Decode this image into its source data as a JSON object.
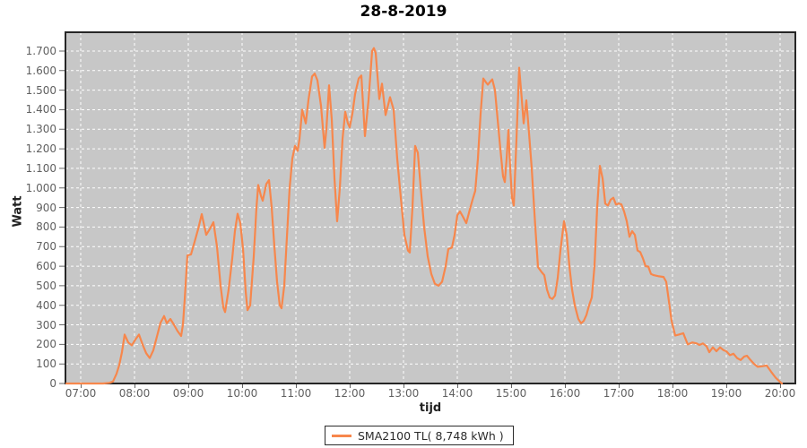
{
  "title": "28-8-2019",
  "y_axis": {
    "label": "Watt"
  },
  "x_axis": {
    "label": "tijd"
  },
  "legend": {
    "series_label": "SMA2100 TL( 8,748 kWh )"
  },
  "colors": {
    "series_line": "#f7874c",
    "plot_background": "#c7c7c7",
    "gridline": "#ffffff",
    "plot_border": "#262626",
    "tick_label": "#606060",
    "tick_mark": "#666666"
  },
  "chart_data": {
    "type": "line",
    "title": "28-8-2019",
    "xlabel": "tijd",
    "ylabel": "Watt",
    "ylim": [
      0,
      1796
    ],
    "xlim": [
      "06:43",
      "20:15"
    ],
    "grid": "white dashed gridlines on gray plot, every hour / every 100 W",
    "legend_position": "bottom-center",
    "x_ticks": [
      "07:00",
      "08:00",
      "09:00",
      "10:00",
      "11:00",
      "12:00",
      "13:00",
      "14:00",
      "15:00",
      "16:00",
      "17:00",
      "18:00",
      "19:00",
      "20:00"
    ],
    "y_tick_values": [
      0,
      100,
      200,
      300,
      400,
      500,
      600,
      700,
      800,
      900,
      1000,
      1100,
      1200,
      1300,
      1400,
      1500,
      1600,
      1700
    ],
    "y_tick_labels": [
      "0",
      "100",
      "200",
      "300",
      "400",
      "500",
      "600",
      "700",
      "800",
      "900",
      "1.000",
      "1.100",
      "1.200",
      "1.300",
      "1.400",
      "1.500",
      "1.600",
      "1.700"
    ],
    "series": [
      {
        "name": "SMA2100 TL( 8,748 kWh )",
        "color": "#f7874c",
        "points": [
          [
            "06:44",
            0
          ],
          [
            "07:00",
            0
          ],
          [
            "07:15",
            0
          ],
          [
            "07:25",
            0
          ],
          [
            "07:32",
            3
          ],
          [
            "07:36",
            10
          ],
          [
            "07:40",
            50
          ],
          [
            "07:43",
            95
          ],
          [
            "07:46",
            160
          ],
          [
            "07:49",
            250
          ],
          [
            "07:53",
            210
          ],
          [
            "07:57",
            195
          ],
          [
            "08:01",
            225
          ],
          [
            "08:05",
            250
          ],
          [
            "08:09",
            200
          ],
          [
            "08:13",
            155
          ],
          [
            "08:17",
            130
          ],
          [
            "08:21",
            170
          ],
          [
            "08:25",
            240
          ],
          [
            "08:29",
            310
          ],
          [
            "08:33",
            345
          ],
          [
            "08:36",
            308
          ],
          [
            "08:40",
            330
          ],
          [
            "08:44",
            300
          ],
          [
            "08:48",
            268
          ],
          [
            "08:52",
            243
          ],
          [
            "08:54",
            300
          ],
          [
            "08:56",
            430
          ],
          [
            "08:59",
            655
          ],
          [
            "09:03",
            660
          ],
          [
            "09:07",
            724
          ],
          [
            "09:11",
            790
          ],
          [
            "09:15",
            866
          ],
          [
            "09:20",
            760
          ],
          [
            "09:24",
            790
          ],
          [
            "09:28",
            825
          ],
          [
            "09:32",
            700
          ],
          [
            "09:36",
            500
          ],
          [
            "09:39",
            390
          ],
          [
            "09:41",
            365
          ],
          [
            "09:45",
            480
          ],
          [
            "09:49",
            640
          ],
          [
            "09:52",
            780
          ],
          [
            "09:55",
            868
          ],
          [
            "09:58",
            820
          ],
          [
            "10:01",
            690
          ],
          [
            "10:04",
            470
          ],
          [
            "10:06",
            375
          ],
          [
            "10:09",
            400
          ],
          [
            "10:13",
            650
          ],
          [
            "10:16",
            900
          ],
          [
            "10:18",
            1015
          ],
          [
            "10:21",
            960
          ],
          [
            "10:23",
            935
          ],
          [
            "10:27",
            1020
          ],
          [
            "10:30",
            1040
          ],
          [
            "10:33",
            900
          ],
          [
            "10:36",
            700
          ],
          [
            "10:39",
            520
          ],
          [
            "10:42",
            400
          ],
          [
            "10:44",
            385
          ],
          [
            "10:47",
            500
          ],
          [
            "10:50",
            750
          ],
          [
            "10:53",
            1000
          ],
          [
            "10:56",
            1150
          ],
          [
            "10:59",
            1215
          ],
          [
            "11:02",
            1190
          ],
          [
            "11:04",
            1250
          ],
          [
            "11:07",
            1400
          ],
          [
            "11:11",
            1330
          ],
          [
            "11:14",
            1450
          ],
          [
            "11:18",
            1570
          ],
          [
            "11:21",
            1585
          ],
          [
            "11:24",
            1550
          ],
          [
            "11:28",
            1420
          ],
          [
            "11:32",
            1205
          ],
          [
            "11:34",
            1300
          ],
          [
            "11:37",
            1525
          ],
          [
            "11:40",
            1350
          ],
          [
            "11:43",
            1050
          ],
          [
            "11:46",
            830
          ],
          [
            "11:49",
            1000
          ],
          [
            "11:52",
            1250
          ],
          [
            "11:55",
            1390
          ],
          [
            "11:58",
            1330
          ],
          [
            "12:00",
            1310
          ],
          [
            "12:03",
            1380
          ],
          [
            "12:06",
            1480
          ],
          [
            "12:10",
            1560
          ],
          [
            "12:13",
            1575
          ],
          [
            "12:17",
            1265
          ],
          [
            "12:21",
            1450
          ],
          [
            "12:25",
            1700
          ],
          [
            "12:27",
            1715
          ],
          [
            "12:29",
            1690
          ],
          [
            "12:33",
            1455
          ],
          [
            "12:36",
            1533
          ],
          [
            "12:40",
            1373
          ],
          [
            "12:45",
            1464
          ],
          [
            "12:49",
            1400
          ],
          [
            "12:53",
            1150
          ],
          [
            "12:57",
            950
          ],
          [
            "13:01",
            760
          ],
          [
            "13:05",
            680
          ],
          [
            "13:07",
            670
          ],
          [
            "13:10",
            900
          ],
          [
            "13:13",
            1215
          ],
          [
            "13:16",
            1180
          ],
          [
            "13:19",
            1010
          ],
          [
            "13:23",
            800
          ],
          [
            "13:27",
            650
          ],
          [
            "13:31",
            560
          ],
          [
            "13:35",
            510
          ],
          [
            "13:39",
            500
          ],
          [
            "13:43",
            520
          ],
          [
            "13:47",
            600
          ],
          [
            "13:50",
            688
          ],
          [
            "13:54",
            695
          ],
          [
            "13:57",
            760
          ],
          [
            "14:00",
            860
          ],
          [
            "14:03",
            880
          ],
          [
            "14:06",
            855
          ],
          [
            "14:10",
            820
          ],
          [
            "14:14",
            890
          ],
          [
            "14:17",
            940
          ],
          [
            "14:20",
            985
          ],
          [
            "14:23",
            1150
          ],
          [
            "14:26",
            1380
          ],
          [
            "14:29",
            1560
          ],
          [
            "14:32",
            1540
          ],
          [
            "14:34",
            1528
          ],
          [
            "14:37",
            1545
          ],
          [
            "14:39",
            1555
          ],
          [
            "14:42",
            1500
          ],
          [
            "14:45",
            1350
          ],
          [
            "14:48",
            1200
          ],
          [
            "14:51",
            1060
          ],
          [
            "14:53",
            1030
          ],
          [
            "14:55",
            1150
          ],
          [
            "14:57",
            1297
          ],
          [
            "14:59",
            1100
          ],
          [
            "15:01",
            950
          ],
          [
            "15:03",
            910
          ],
          [
            "15:06",
            1250
          ],
          [
            "15:09",
            1615
          ],
          [
            "15:12",
            1450
          ],
          [
            "15:14",
            1330
          ],
          [
            "15:17",
            1448
          ],
          [
            "15:20",
            1280
          ],
          [
            "15:23",
            1100
          ],
          [
            "15:27",
            800
          ],
          [
            "15:30",
            595
          ],
          [
            "15:34",
            570
          ],
          [
            "15:37",
            554
          ],
          [
            "15:40",
            480
          ],
          [
            "15:43",
            440
          ],
          [
            "15:46",
            432
          ],
          [
            "15:49",
            450
          ],
          [
            "15:52",
            540
          ],
          [
            "15:55",
            680
          ],
          [
            "15:59",
            830
          ],
          [
            "16:02",
            760
          ],
          [
            "16:05",
            600
          ],
          [
            "16:08",
            480
          ],
          [
            "16:11",
            400
          ],
          [
            "16:15",
            330
          ],
          [
            "16:18",
            308
          ],
          [
            "16:21",
            320
          ],
          [
            "16:24",
            350
          ],
          [
            "16:27",
            400
          ],
          [
            "16:30",
            440
          ],
          [
            "16:33",
            600
          ],
          [
            "16:36",
            900
          ],
          [
            "16:39",
            1113
          ],
          [
            "16:42",
            1050
          ],
          [
            "16:45",
            920
          ],
          [
            "16:48",
            910
          ],
          [
            "16:51",
            940
          ],
          [
            "16:54",
            950
          ],
          [
            "16:57",
            915
          ],
          [
            "17:00",
            920
          ],
          [
            "17:03",
            916
          ],
          [
            "17:06",
            880
          ],
          [
            "17:09",
            830
          ],
          [
            "17:12",
            750
          ],
          [
            "17:15",
            779
          ],
          [
            "17:18",
            760
          ],
          [
            "17:21",
            680
          ],
          [
            "17:24",
            672
          ],
          [
            "17:27",
            640
          ],
          [
            "17:30",
            600
          ],
          [
            "17:33",
            598
          ],
          [
            "17:36",
            560
          ],
          [
            "17:39",
            554
          ],
          [
            "17:45",
            548
          ],
          [
            "17:50",
            545
          ],
          [
            "17:53",
            520
          ],
          [
            "17:56",
            420
          ],
          [
            "17:59",
            320
          ],
          [
            "18:03",
            245
          ],
          [
            "18:07",
            250
          ],
          [
            "18:12",
            257
          ],
          [
            "18:17",
            200
          ],
          [
            "18:22",
            210
          ],
          [
            "18:27",
            205
          ],
          [
            "18:30",
            197
          ],
          [
            "18:34",
            205
          ],
          [
            "18:38",
            190
          ],
          [
            "18:41",
            160
          ],
          [
            "18:45",
            185
          ],
          [
            "18:49",
            165
          ],
          [
            "18:53",
            185
          ],
          [
            "18:57",
            170
          ],
          [
            "19:00",
            165
          ],
          [
            "19:04",
            145
          ],
          [
            "19:08",
            152
          ],
          [
            "19:12",
            130
          ],
          [
            "19:16",
            120
          ],
          [
            "19:20",
            138
          ],
          [
            "19:23",
            142
          ],
          [
            "19:27",
            120
          ],
          [
            "19:31",
            100
          ],
          [
            "19:35",
            85
          ],
          [
            "19:40",
            88
          ],
          [
            "19:45",
            92
          ],
          [
            "19:50",
            60
          ],
          [
            "19:55",
            30
          ],
          [
            "20:00",
            8
          ],
          [
            "20:02",
            0
          ]
        ]
      }
    ]
  }
}
